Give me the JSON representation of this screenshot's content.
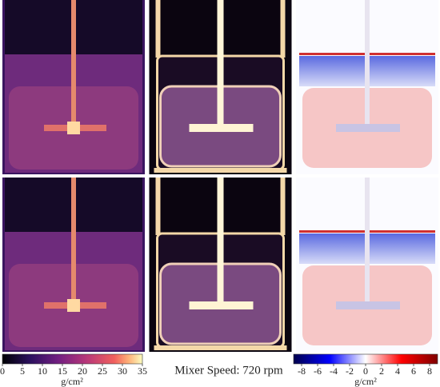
{
  "caption": "Mixer Speed: 720 rpm",
  "colorbars": [
    {
      "lim": [
        0,
        35
      ],
      "ticks": [
        0,
        5,
        10,
        15,
        20,
        25,
        30,
        35
      ],
      "label": "g/cm²"
    },
    {
      "lim": [
        -9,
        9
      ],
      "ticks": [
        -8,
        -6,
        -4,
        -2,
        0,
        2,
        4,
        6,
        8
      ],
      "label": "g/cm²"
    }
  ]
}
